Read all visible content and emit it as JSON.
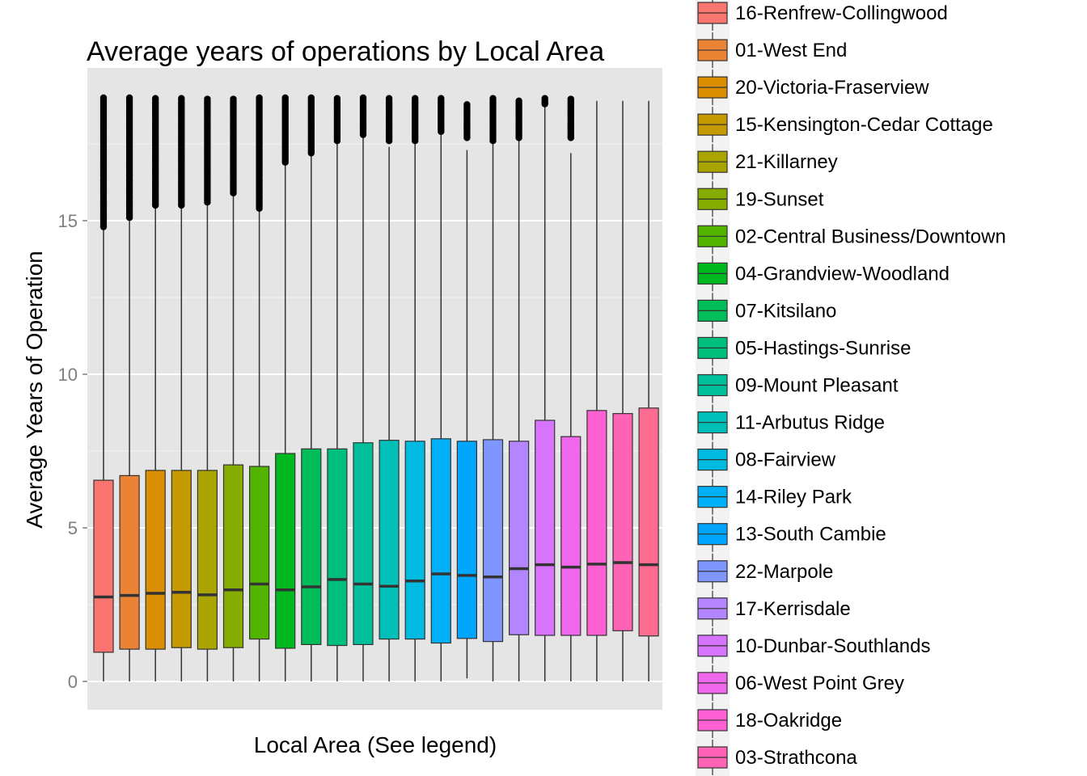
{
  "chart_data": {
    "type": "boxplot",
    "title": "Average years of operations by Local Area",
    "xlabel": "Local Area (See legend)",
    "ylabel": "Average Years of Operation",
    "ylim": [
      -0.9,
      19.8
    ],
    "yticks": [
      0,
      5,
      10,
      15
    ],
    "grid": true,
    "legend_position": "right",
    "series": [
      {
        "name": "16-Renfrew-Collingwood",
        "color": "#F8766D",
        "min": 0,
        "q1": 0.95,
        "median": 2.75,
        "q3": 6.55,
        "whisker_high": 14.8,
        "outliers_from": 14.8,
        "outliers_to": 19.0
      },
      {
        "name": "01-West End",
        "color": "#EB8335",
        "min": 0,
        "q1": 1.05,
        "median": 2.8,
        "q3": 6.7,
        "whisker_high": 15.1,
        "outliers_from": 15.1,
        "outliers_to": 19.0
      },
      {
        "name": "20-Victoria-Fraserview",
        "color": "#DA8F00",
        "min": 0,
        "q1": 1.05,
        "median": 2.87,
        "q3": 6.87,
        "whisker_high": 15.4,
        "outliers_from": 15.5,
        "outliers_to": 19.0
      },
      {
        "name": "15-Kensington-Cedar Cottage",
        "color": "#C49A00",
        "min": 0,
        "q1": 1.1,
        "median": 2.9,
        "q3": 6.87,
        "whisker_high": 15.5,
        "outliers_from": 15.5,
        "outliers_to": 19.0
      },
      {
        "name": "21-Killarney",
        "color": "#A9A400",
        "min": 0,
        "q1": 1.05,
        "median": 2.82,
        "q3": 6.87,
        "whisker_high": 15.6,
        "outliers_from": 15.6,
        "outliers_to": 19.0
      },
      {
        "name": "19-Sunset",
        "color": "#86AC00",
        "min": 0,
        "q1": 1.1,
        "median": 2.98,
        "q3": 7.05,
        "whisker_high": 15.9,
        "outliers_from": 15.9,
        "outliers_to": 19.0
      },
      {
        "name": "02-Central Business/Downtown",
        "color": "#53B400",
        "min": 0,
        "q1": 1.38,
        "median": 3.17,
        "q3": 7.0,
        "whisker_high": 15.4,
        "outliers_from": 15.4,
        "outliers_to": 19.0
      },
      {
        "name": "04-Grandview-Woodland",
        "color": "#00B81F",
        "min": 0,
        "q1": 1.08,
        "median": 2.98,
        "q3": 7.42,
        "whisker_high": 16.9,
        "outliers_from": 16.9,
        "outliers_to": 19.0
      },
      {
        "name": "07-Kitsilano",
        "color": "#00BC59",
        "min": 0,
        "q1": 1.2,
        "median": 3.08,
        "q3": 7.57,
        "whisker_high": 17.2,
        "outliers_from": 17.2,
        "outliers_to": 19.0
      },
      {
        "name": "05-Hastings-Sunrise",
        "color": "#00BF7D",
        "min": 0,
        "q1": 1.17,
        "median": 3.32,
        "q3": 7.57,
        "whisker_high": 17.6,
        "outliers_from": 17.6,
        "outliers_to": 19.0
      },
      {
        "name": "09-Mount Pleasant",
        "color": "#00C09C",
        "min": 0,
        "q1": 1.2,
        "median": 3.17,
        "q3": 7.77,
        "whisker_high": 17.8,
        "outliers_from": 17.8,
        "outliers_to": 19.0
      },
      {
        "name": "11-Arbutus Ridge",
        "color": "#00BFB8",
        "min": 0,
        "q1": 1.38,
        "median": 3.1,
        "q3": 7.85,
        "whisker_high": 17.4,
        "outliers_from": 17.6,
        "outliers_to": 19.0
      },
      {
        "name": "08-Fairview",
        "color": "#00BAE0",
        "min": 0,
        "q1": 1.38,
        "median": 3.27,
        "q3": 7.82,
        "whisker_high": 17.5,
        "outliers_from": 17.6,
        "outliers_to": 19.0
      },
      {
        "name": "14-Riley Park",
        "color": "#00B0F6",
        "min": 0,
        "q1": 1.25,
        "median": 3.5,
        "q3": 7.9,
        "whisker_high": 17.9,
        "outliers_from": 17.9,
        "outliers_to": 19.0
      },
      {
        "name": "13-South Cambie",
        "color": "#00A5FF",
        "min": 0.1,
        "q1": 1.4,
        "median": 3.45,
        "q3": 7.82,
        "whisker_high": 17.3,
        "outliers_from": 17.7,
        "outliers_to": 18.8
      },
      {
        "name": "22-Marpole",
        "color": "#7F96FF",
        "min": 0,
        "q1": 1.3,
        "median": 3.4,
        "q3": 7.87,
        "whisker_high": 17.6,
        "outliers_from": 17.6,
        "outliers_to": 19.0
      },
      {
        "name": "17-Kerrisdale",
        "color": "#B385FF",
        "min": 0,
        "q1": 1.52,
        "median": 3.67,
        "q3": 7.82,
        "whisker_high": 17.7,
        "outliers_from": 17.7,
        "outliers_to": 18.9
      },
      {
        "name": "10-Dunbar-Southlands",
        "color": "#D774FD",
        "min": 0,
        "q1": 1.5,
        "median": 3.8,
        "q3": 8.5,
        "whisker_high": 18.8,
        "outliers_from": 18.8,
        "outliers_to": 19.0
      },
      {
        "name": "06-West Point Grey",
        "color": "#EF67EB",
        "min": 0,
        "q1": 1.5,
        "median": 3.72,
        "q3": 7.97,
        "whisker_high": 17.2,
        "outliers_from": 17.7,
        "outliers_to": 19.0
      },
      {
        "name": "18-Oakridge",
        "color": "#FD61D3",
        "min": 0,
        "q1": 1.5,
        "median": 3.82,
        "q3": 8.82,
        "whisker_high": 18.9,
        "outliers_from": null,
        "outliers_to": null
      },
      {
        "name": "03-Strathcona",
        "color": "#FF63B6",
        "min": 0,
        "q1": 1.65,
        "median": 3.87,
        "q3": 8.72,
        "whisker_high": 18.9,
        "outliers_from": null,
        "outliers_to": null
      },
      {
        "name": "",
        "color": "#FF6C91",
        "min": 0,
        "q1": 1.48,
        "median": 3.8,
        "q3": 8.9,
        "whisker_high": 18.9,
        "outliers_from": null,
        "outliers_to": null
      }
    ]
  }
}
